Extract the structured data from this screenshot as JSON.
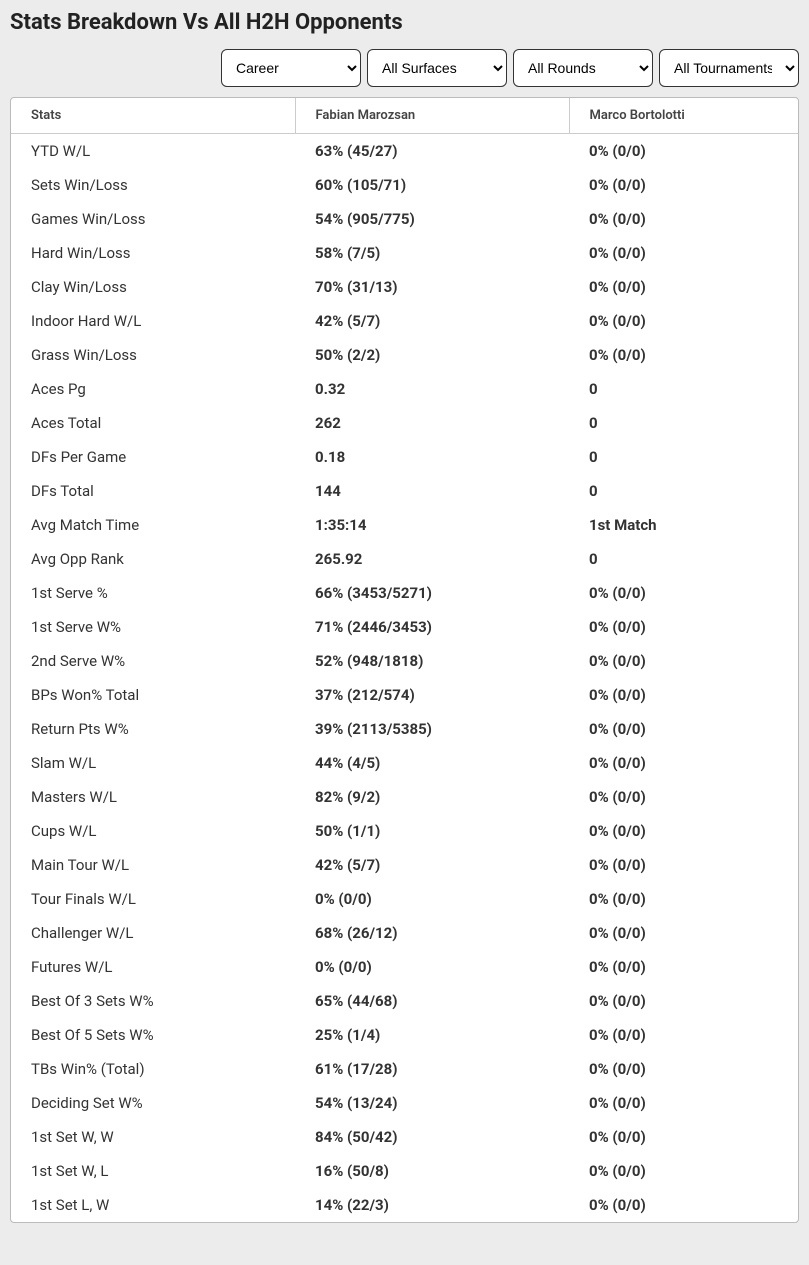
{
  "title": "Stats Breakdown Vs All H2H Opponents",
  "filters": {
    "time": "Career",
    "surface": "All Surfaces",
    "round": "All Rounds",
    "tournament": "All Tournaments"
  },
  "columns": {
    "c0": "Stats",
    "c1": "Fabian Marozsan",
    "c2": "Marco Bortolotti"
  },
  "rows": [
    {
      "label": "YTD W/L",
      "p1": "63% (45/27)",
      "p2": "0% (0/0)"
    },
    {
      "label": "Sets Win/Loss",
      "p1": "60% (105/71)",
      "p2": "0% (0/0)"
    },
    {
      "label": "Games Win/Loss",
      "p1": "54% (905/775)",
      "p2": "0% (0/0)"
    },
    {
      "label": "Hard Win/Loss",
      "p1": "58% (7/5)",
      "p2": "0% (0/0)"
    },
    {
      "label": "Clay Win/Loss",
      "p1": "70% (31/13)",
      "p2": "0% (0/0)"
    },
    {
      "label": "Indoor Hard W/L",
      "p1": "42% (5/7)",
      "p2": "0% (0/0)"
    },
    {
      "label": "Grass Win/Loss",
      "p1": "50% (2/2)",
      "p2": "0% (0/0)"
    },
    {
      "label": "Aces Pg",
      "p1": "0.32",
      "p2": "0"
    },
    {
      "label": "Aces Total",
      "p1": "262",
      "p2": "0"
    },
    {
      "label": "DFs Per Game",
      "p1": "0.18",
      "p2": "0"
    },
    {
      "label": "DFs Total",
      "p1": "144",
      "p2": "0"
    },
    {
      "label": "Avg Match Time",
      "p1": "1:35:14",
      "p2": "1st Match"
    },
    {
      "label": "Avg Opp Rank",
      "p1": "265.92",
      "p2": "0"
    },
    {
      "label": "1st Serve %",
      "p1": "66% (3453/5271)",
      "p2": "0% (0/0)"
    },
    {
      "label": "1st Serve W%",
      "p1": "71% (2446/3453)",
      "p2": "0% (0/0)"
    },
    {
      "label": "2nd Serve W%",
      "p1": "52% (948/1818)",
      "p2": "0% (0/0)"
    },
    {
      "label": "BPs Won% Total",
      "p1": "37% (212/574)",
      "p2": "0% (0/0)"
    },
    {
      "label": "Return Pts W%",
      "p1": "39% (2113/5385)",
      "p2": "0% (0/0)"
    },
    {
      "label": "Slam W/L",
      "p1": "44% (4/5)",
      "p2": "0% (0/0)"
    },
    {
      "label": "Masters W/L",
      "p1": "82% (9/2)",
      "p2": "0% (0/0)"
    },
    {
      "label": "Cups W/L",
      "p1": "50% (1/1)",
      "p2": "0% (0/0)"
    },
    {
      "label": "Main Tour W/L",
      "p1": "42% (5/7)",
      "p2": "0% (0/0)"
    },
    {
      "label": "Tour Finals W/L",
      "p1": "0% (0/0)",
      "p2": "0% (0/0)"
    },
    {
      "label": "Challenger W/L",
      "p1": "68% (26/12)",
      "p2": "0% (0/0)"
    },
    {
      "label": "Futures W/L",
      "p1": "0% (0/0)",
      "p2": "0% (0/0)"
    },
    {
      "label": "Best Of 3 Sets W%",
      "p1": "65% (44/68)",
      "p2": "0% (0/0)"
    },
    {
      "label": "Best Of 5 Sets W%",
      "p1": "25% (1/4)",
      "p2": "0% (0/0)"
    },
    {
      "label": "TBs Win% (Total)",
      "p1": "61% (17/28)",
      "p2": "0% (0/0)"
    },
    {
      "label": "Deciding Set W%",
      "p1": "54% (13/24)",
      "p2": "0% (0/0)"
    },
    {
      "label": "1st Set W, W",
      "p1": "84% (50/42)",
      "p2": "0% (0/0)"
    },
    {
      "label": "1st Set W, L",
      "p1": "16% (50/8)",
      "p2": "0% (0/0)"
    },
    {
      "label": "1st Set L, W",
      "p1": "14% (22/3)",
      "p2": "0% (0/0)"
    }
  ]
}
